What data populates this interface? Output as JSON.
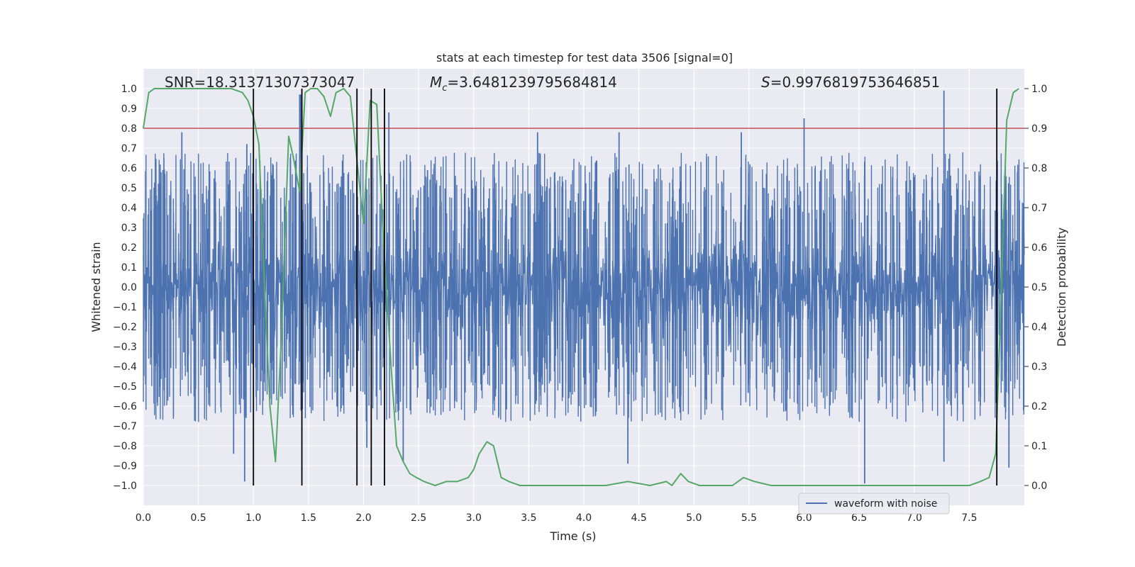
{
  "chart_data": {
    "type": "line",
    "title": "stats at each timestep for test data 3506 [signal=0]",
    "xlabel": "Time (s)",
    "ylabel_left": "Whitened strain",
    "ylabel_right": "Detection probability",
    "xlim": [
      0.0,
      8.0
    ],
    "ylim_left": [
      -1.1,
      1.1
    ],
    "ylim_right": [
      -0.05,
      1.05
    ],
    "x_ticks": [
      "0.0",
      "0.5",
      "1.0",
      "1.5",
      "2.0",
      "2.5",
      "3.0",
      "3.5",
      "4.0",
      "4.5",
      "5.0",
      "5.5",
      "6.0",
      "6.5",
      "7.0",
      "7.5"
    ],
    "y_ticks_left": [
      "1.0",
      "0.9",
      "0.8",
      "0.7",
      "0.6",
      "0.5",
      "0.4",
      "0.3",
      "0.2",
      "0.1",
      "0.0",
      "−0.1",
      "−0.2",
      "−0.3",
      "−0.4",
      "−0.5",
      "−0.6",
      "−0.7",
      "−0.8",
      "−0.9",
      "−1.0"
    ],
    "y_ticks_right": [
      "1.0",
      "0.9",
      "0.8",
      "0.7",
      "0.6",
      "0.5",
      "0.4",
      "0.3",
      "0.2",
      "0.1",
      "0.0"
    ],
    "grid": true,
    "legend_position": "bottom-right",
    "annotations": {
      "snr": "SNR=18.31371307373047",
      "mc_prefix": "M",
      "mc_sub": "c",
      "mc_value": "=3.6481239795684814",
      "s_prefix": "S",
      "s_value": "=0.9976819753646851"
    },
    "series": [
      {
        "name": "waveform with noise",
        "axis": "left",
        "color": "#4c72b0",
        "duration_s": 8.0,
        "note_values": "dense noise; envelope roughly ±0.5 with peaks to ±1.0",
        "peaks": [
          {
            "x": 0.35,
            "y": 0.78
          },
          {
            "x": 0.82,
            "y": -0.84
          },
          {
            "x": 0.92,
            "y": -0.98
          },
          {
            "x": 0.94,
            "y": 0.72
          },
          {
            "x": 1.42,
            "y": 0.97
          },
          {
            "x": 1.43,
            "y": 0.97
          },
          {
            "x": 2.03,
            "y": -0.81
          },
          {
            "x": 2.23,
            "y": 0.88
          },
          {
            "x": 2.36,
            "y": -0.88
          },
          {
            "x": 4.4,
            "y": -0.89
          },
          {
            "x": 6.0,
            "y": 0.85
          },
          {
            "x": 6.55,
            "y": -0.99
          },
          {
            "x": 7.27,
            "y": 0.99
          },
          {
            "x": 7.27,
            "y": -0.88
          },
          {
            "x": 7.86,
            "y": -0.91
          },
          {
            "x": 3.58,
            "y": 0.78
          },
          {
            "x": 4.32,
            "y": 0.78
          },
          {
            "x": 5.43,
            "y": 0.78
          }
        ]
      },
      {
        "name": "",
        "axis": "right",
        "color": "#55a868",
        "x": [
          0.0,
          0.05,
          0.1,
          0.2,
          0.4,
          0.6,
          0.8,
          0.9,
          0.95,
          1.0,
          1.05,
          1.1,
          1.15,
          1.2,
          1.25,
          1.32,
          1.36,
          1.42,
          1.47,
          1.52,
          1.58,
          1.64,
          1.7,
          1.75,
          1.82,
          1.88,
          1.94,
          2.0,
          2.06,
          2.12,
          2.18,
          2.25,
          2.3,
          2.36,
          2.42,
          2.48,
          2.55,
          2.65,
          2.75,
          2.85,
          2.95,
          3.0,
          3.05,
          3.12,
          3.18,
          3.25,
          3.32,
          3.42,
          3.52,
          3.6,
          3.8,
          4.0,
          4.2,
          4.4,
          4.6,
          4.75,
          4.8,
          4.88,
          4.95,
          5.05,
          5.2,
          5.35,
          5.45,
          5.55,
          5.7,
          5.9,
          6.1,
          6.3,
          6.5,
          6.7,
          6.9,
          7.1,
          7.3,
          7.5,
          7.6,
          7.68,
          7.74,
          7.78,
          7.84,
          7.9,
          7.95
        ],
        "values": [
          0.9,
          0.99,
          1.0,
          1.0,
          1.0,
          1.0,
          1.0,
          0.99,
          0.97,
          0.93,
          0.86,
          0.5,
          0.2,
          0.06,
          0.35,
          0.88,
          0.83,
          0.74,
          0.99,
          1.0,
          1.0,
          0.98,
          0.93,
          0.99,
          1.0,
          0.98,
          0.82,
          0.66,
          0.97,
          0.96,
          0.62,
          0.3,
          0.1,
          0.06,
          0.03,
          0.02,
          0.01,
          0.0,
          0.01,
          0.01,
          0.02,
          0.04,
          0.08,
          0.11,
          0.1,
          0.02,
          0.01,
          0.0,
          0.0,
          0.0,
          0.0,
          0.0,
          0.0,
          0.01,
          0.0,
          0.01,
          0.0,
          0.03,
          0.01,
          0.0,
          0.0,
          0.0,
          0.02,
          0.01,
          0.0,
          0.0,
          0.0,
          0.0,
          0.0,
          0.0,
          0.0,
          0.0,
          0.0,
          0.0,
          0.01,
          0.02,
          0.08,
          0.4,
          0.92,
          0.99,
          1.0
        ]
      }
    ],
    "threshold": {
      "axis": "right",
      "value": 0.9,
      "color": "#c44e52"
    },
    "vertical_markers": {
      "color": "#000000",
      "x": [
        1.0,
        1.44,
        1.94,
        2.07,
        2.19,
        7.75
      ],
      "y_range_right": [
        0.0,
        1.0
      ]
    },
    "axes_face_color": "#eaeaf2",
    "grid_color": "#ffffff"
  }
}
